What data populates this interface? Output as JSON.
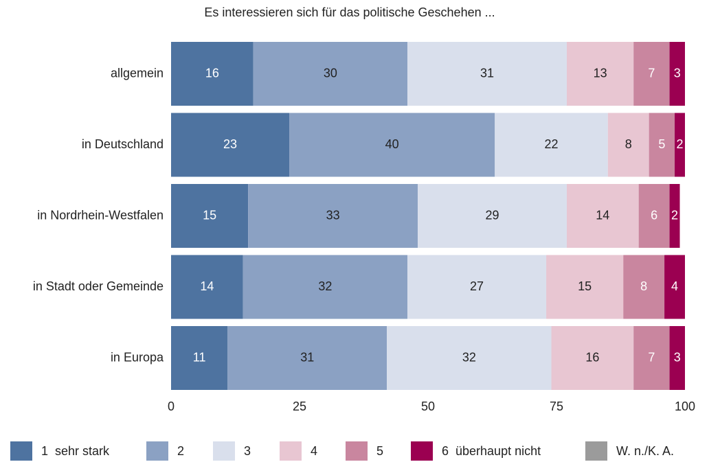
{
  "chart_data": {
    "type": "bar",
    "orientation": "horizontal",
    "stacked": true,
    "title": "Es interessieren sich für das politische Geschehen ...",
    "categories": [
      "allgemein",
      "in Deutschland",
      "in Nordrhein-Westfalen",
      "in Stadt oder Gemeinde",
      "in Europa"
    ],
    "series": [
      {
        "name": "1  sehr stark",
        "color": "#4e73a0",
        "values": [
          16,
          23,
          15,
          14,
          11
        ]
      },
      {
        "name": "2",
        "color": "#8ba1c3",
        "values": [
          30,
          40,
          33,
          32,
          31
        ]
      },
      {
        "name": "3",
        "color": "#d9dfec",
        "values": [
          31,
          22,
          29,
          27,
          32
        ]
      },
      {
        "name": "4",
        "color": "#e8c6d2",
        "values": [
          13,
          8,
          14,
          15,
          16
        ]
      },
      {
        "name": "5",
        "color": "#c9869f",
        "values": [
          7,
          5,
          6,
          8,
          7
        ]
      },
      {
        "name": "6  überhaupt nicht",
        "color": "#9b0051",
        "values": [
          3,
          2,
          2,
          4,
          3
        ]
      },
      {
        "name": "W. n./K. A.",
        "color": "#9b9b9b",
        "values": [
          null,
          null,
          null,
          null,
          null
        ]
      }
    ],
    "xlim": [
      0,
      100
    ],
    "xticks": [
      0,
      25,
      50,
      75,
      100
    ]
  }
}
